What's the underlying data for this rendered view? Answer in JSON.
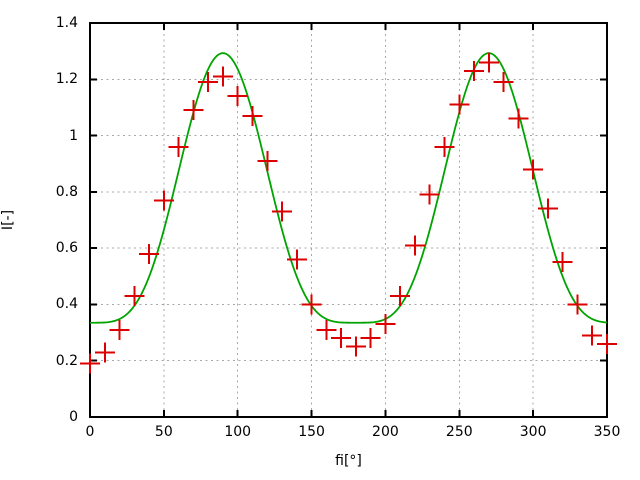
{
  "figure": {
    "background": "#ffffff"
  },
  "chart_data": {
    "type": "scatter",
    "title": "",
    "xlabel": "fi[°]",
    "ylabel": "I[-]",
    "xlim": [
      0,
      350
    ],
    "ylim": [
      0,
      1.4
    ],
    "x_ticks": [
      0,
      50,
      100,
      150,
      200,
      250,
      300,
      350
    ],
    "x_tick_labels": [
      "0",
      "50",
      "100",
      "150",
      "200",
      "250",
      "300",
      "350"
    ],
    "y_ticks": [
      0,
      0.2,
      0.4,
      0.6,
      0.8,
      1,
      1.2,
      1.4
    ],
    "y_tick_labels": [
      "0",
      "0.2",
      "0.4",
      "0.6",
      "0.8",
      "1",
      "1.2",
      "1.4"
    ],
    "grid": true,
    "legend": "none",
    "colors": {
      "axis": "#000000",
      "grid": "#a8a8a8",
      "background": "#ffffff"
    },
    "series": [
      {
        "name": "measured-points",
        "type": "points",
        "marker": "plus",
        "marker_size": 21,
        "color": "#dd0000",
        "x": [
          0,
          10,
          20,
          30,
          40,
          50,
          60,
          70,
          80,
          90,
          100,
          110,
          120,
          130,
          140,
          150,
          160,
          170,
          180,
          190,
          200,
          210,
          220,
          230,
          240,
          250,
          260,
          270,
          280,
          290,
          300,
          310,
          320,
          330,
          340,
          350
        ],
        "y": [
          0.19,
          0.23,
          0.31,
          0.43,
          0.58,
          0.77,
          0.96,
          1.09,
          1.19,
          1.21,
          1.14,
          1.07,
          0.91,
          0.73,
          0.56,
          0.4,
          0.31,
          0.28,
          0.25,
          0.28,
          0.33,
          0.43,
          0.61,
          0.79,
          0.96,
          1.11,
          1.23,
          1.26,
          1.19,
          1.06,
          0.88,
          0.74,
          0.55,
          0.4,
          0.29,
          0.26
        ]
      },
      {
        "name": "fit-curve",
        "type": "line",
        "color": "#00a400",
        "formula": "I(fi) = 0.335 + 0.958*sin(fi)^4",
        "params": {
          "base": 0.335,
          "amplitude": 0.958,
          "power": 4
        },
        "x_range": [
          0,
          350
        ],
        "peaks": {
          "x": [
            90,
            270
          ],
          "value": 1.293
        },
        "minimum": 0.335
      }
    ]
  }
}
